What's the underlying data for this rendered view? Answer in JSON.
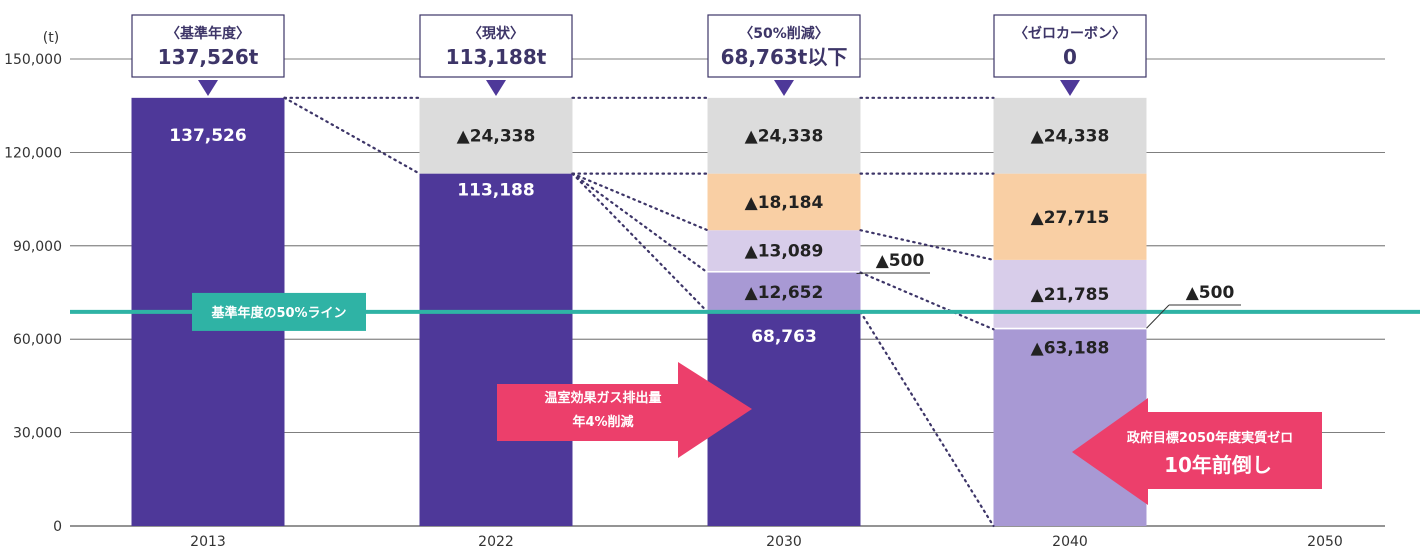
{
  "chart_data": {
    "type": "bar",
    "stacked": true,
    "unit_label": "(t)",
    "yticks": [
      "0",
      "30,000",
      "60,000",
      "90,000",
      "120,000",
      "150,000"
    ],
    "ytick_values": [
      0,
      30000,
      60000,
      90000,
      120000,
      150000
    ],
    "ylim": [
      0,
      150000
    ],
    "grid": true,
    "categories": [
      "2013",
      "2022",
      "2030",
      "2040",
      "2050"
    ],
    "bars": [
      {
        "category": "2013",
        "callout": {
          "heading": "〈基準年度〉",
          "value": "137,526t"
        },
        "segments": [
          {
            "value": 137526,
            "label": "137,526",
            "color": "#4e3899",
            "label_color": "#ffffff"
          }
        ]
      },
      {
        "category": "2022",
        "callout": {
          "heading": "〈現状〉",
          "value": "113,188t"
        },
        "segments": [
          {
            "value": 113188,
            "label": "113,188",
            "color": "#4e3899",
            "label_color": "#ffffff"
          },
          {
            "value": 24338,
            "label": "▲24,338",
            "color": "#dcdcdc",
            "label_color": "#222222"
          }
        ]
      },
      {
        "category": "2030",
        "callout": {
          "heading": "〈50%削減〉",
          "value": "68,763t以下"
        },
        "segments": [
          {
            "value": 68763,
            "label": "68,763",
            "color": "#4e3899",
            "label_color": "#ffffff"
          },
          {
            "value": 12652,
            "label": "▲12,652",
            "color": "#a899d4",
            "label_color": "#222222"
          },
          {
            "value": 500,
            "label": "",
            "color": "#ffffff",
            "label_color": "#222222"
          },
          {
            "value": 13089,
            "label": "▲13,089",
            "color": "#d8cdea",
            "label_color": "#222222"
          },
          {
            "value": 18184,
            "label": "▲18,184",
            "color": "#f9cfa4",
            "label_color": "#222222"
          },
          {
            "value": 24338,
            "label": "▲24,338",
            "color": "#dcdcdc",
            "label_color": "#222222"
          }
        ]
      },
      {
        "category": "2040",
        "callout": {
          "heading": "〈ゼロカーボン〉",
          "value": "0"
        },
        "segments": [
          {
            "value": 63188,
            "label": "▲63,188",
            "color": "#a899d4",
            "label_color": "#222222"
          },
          {
            "value": 500,
            "label": "",
            "color": "#ffffff",
            "label_color": "#222222"
          },
          {
            "value": 21785,
            "label": "▲21,785",
            "color": "#d8cdea",
            "label_color": "#222222"
          },
          {
            "value": 27715,
            "label": "▲27,715",
            "color": "#f9cfa4",
            "label_color": "#222222"
          },
          {
            "value": 24338,
            "label": "▲24,338",
            "color": "#dcdcdc",
            "label_color": "#222222"
          }
        ]
      }
    ],
    "side_labels": [
      {
        "category": "2030",
        "text": "▲500"
      },
      {
        "category": "2040",
        "text": "▲500"
      }
    ],
    "reference_line": {
      "value": 68763,
      "label": "基準年度の50%ライン",
      "color": "#2fb3a5"
    },
    "annotations": [
      {
        "text_lines": [
          "温室効果ガス排出量",
          "年4%削減"
        ],
        "color": "#ec3f6b",
        "direction": "right"
      },
      {
        "text_lines": [
          "政府目標2050年度実質ゼロ",
          "10年前倒し"
        ],
        "color": "#ec3f6b",
        "direction": "left"
      }
    ],
    "colors": {
      "callout_border": "#3d3568",
      "dotted_connector": "#3d3568",
      "grid": "#555555"
    }
  }
}
